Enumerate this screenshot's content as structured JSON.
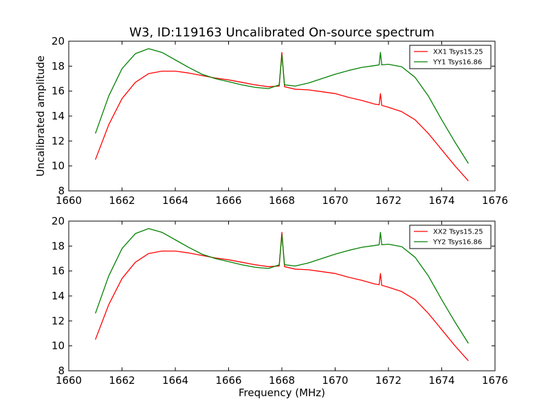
{
  "figure": {
    "title": "W3, ID:119163 Uncalibrated On-source spectrum",
    "ylabel": "Uncalibrated amplitude",
    "xlabel": "Frequency (MHz)"
  },
  "chart_data": [
    {
      "type": "line",
      "xlim": [
        1660,
        1676
      ],
      "ylim": [
        8,
        20
      ],
      "xticks": [
        "1660",
        "1662",
        "1664",
        "1666",
        "1668",
        "1670",
        "1672",
        "1674",
        "1676"
      ],
      "yticks": [
        "8",
        "10",
        "12",
        "14",
        "16",
        "18",
        "20"
      ],
      "legend_position": "top-right",
      "series": [
        {
          "name": "XX1 Tsys15.25",
          "color": "#ff0000",
          "x": [
            1661.0,
            1661.5,
            1662.0,
            1662.5,
            1663.0,
            1663.5,
            1664.0,
            1664.5,
            1665.0,
            1665.5,
            1666.0,
            1666.5,
            1667.0,
            1667.5,
            1667.9,
            1668.0,
            1668.1,
            1668.5,
            1669.0,
            1669.5,
            1670.0,
            1670.5,
            1671.0,
            1671.5,
            1671.65,
            1671.7,
            1671.75,
            1672.0,
            1672.5,
            1673.0,
            1673.5,
            1674.0,
            1674.5,
            1675.0
          ],
          "y": [
            10.5,
            13.3,
            15.4,
            16.7,
            17.4,
            17.6,
            17.6,
            17.45,
            17.25,
            17.05,
            16.9,
            16.7,
            16.5,
            16.35,
            16.4,
            19.1,
            16.35,
            16.15,
            16.1,
            15.95,
            15.8,
            15.5,
            15.25,
            14.95,
            14.9,
            15.8,
            14.85,
            14.7,
            14.35,
            13.7,
            12.6,
            11.3,
            10.0,
            8.8
          ]
        },
        {
          "name": "YY1 Tsys16.86",
          "color": "#008000",
          "x": [
            1661.0,
            1661.5,
            1662.0,
            1662.5,
            1663.0,
            1663.5,
            1664.0,
            1664.5,
            1665.0,
            1665.5,
            1666.0,
            1666.5,
            1667.0,
            1667.5,
            1667.9,
            1668.0,
            1668.1,
            1668.5,
            1669.0,
            1669.5,
            1670.0,
            1670.5,
            1671.0,
            1671.5,
            1671.65,
            1671.7,
            1671.75,
            1672.0,
            1672.5,
            1673.0,
            1673.5,
            1674.0,
            1674.5,
            1675.0
          ],
          "y": [
            12.6,
            15.6,
            17.8,
            19.0,
            19.4,
            19.1,
            18.5,
            17.9,
            17.35,
            17.0,
            16.75,
            16.5,
            16.3,
            16.2,
            16.5,
            18.9,
            16.5,
            16.4,
            16.65,
            17.0,
            17.35,
            17.65,
            17.9,
            18.05,
            18.1,
            19.1,
            18.1,
            18.15,
            17.95,
            17.1,
            15.6,
            13.7,
            11.9,
            10.2
          ]
        }
      ]
    },
    {
      "type": "line",
      "xlim": [
        1660,
        1676
      ],
      "ylim": [
        8,
        20
      ],
      "xticks": [
        "1660",
        "1662",
        "1664",
        "1666",
        "1668",
        "1670",
        "1672",
        "1674",
        "1676"
      ],
      "yticks": [
        "8",
        "10",
        "12",
        "14",
        "16",
        "18",
        "20"
      ],
      "legend_position": "top-right",
      "series": [
        {
          "name": "XX2 Tsys15.25",
          "color": "#ff0000",
          "x": [
            1661.0,
            1661.5,
            1662.0,
            1662.5,
            1663.0,
            1663.5,
            1664.0,
            1664.5,
            1665.0,
            1665.5,
            1666.0,
            1666.5,
            1667.0,
            1667.5,
            1667.9,
            1668.0,
            1668.1,
            1668.5,
            1669.0,
            1669.5,
            1670.0,
            1670.5,
            1671.0,
            1671.5,
            1671.65,
            1671.7,
            1671.75,
            1672.0,
            1672.5,
            1673.0,
            1673.5,
            1674.0,
            1674.5,
            1675.0
          ],
          "y": [
            10.5,
            13.3,
            15.4,
            16.7,
            17.4,
            17.6,
            17.6,
            17.45,
            17.25,
            17.05,
            16.9,
            16.7,
            16.5,
            16.35,
            16.4,
            19.1,
            16.35,
            16.15,
            16.1,
            15.95,
            15.8,
            15.5,
            15.25,
            14.95,
            14.9,
            15.8,
            14.85,
            14.7,
            14.35,
            13.7,
            12.6,
            11.3,
            10.0,
            8.8
          ]
        },
        {
          "name": "YY2 Tsys16.86",
          "color": "#008000",
          "x": [
            1661.0,
            1661.5,
            1662.0,
            1662.5,
            1663.0,
            1663.5,
            1664.0,
            1664.5,
            1665.0,
            1665.5,
            1666.0,
            1666.5,
            1667.0,
            1667.5,
            1667.9,
            1668.0,
            1668.1,
            1668.5,
            1669.0,
            1669.5,
            1670.0,
            1670.5,
            1671.0,
            1671.5,
            1671.65,
            1671.7,
            1671.75,
            1672.0,
            1672.5,
            1673.0,
            1673.5,
            1674.0,
            1674.5,
            1675.0
          ],
          "y": [
            12.6,
            15.6,
            17.8,
            19.0,
            19.4,
            19.1,
            18.5,
            17.9,
            17.35,
            17.0,
            16.75,
            16.5,
            16.3,
            16.2,
            16.5,
            18.9,
            16.5,
            16.4,
            16.65,
            17.0,
            17.35,
            17.65,
            17.9,
            18.05,
            18.1,
            19.1,
            18.1,
            18.15,
            17.95,
            17.1,
            15.6,
            13.7,
            11.9,
            10.2
          ]
        }
      ]
    }
  ]
}
